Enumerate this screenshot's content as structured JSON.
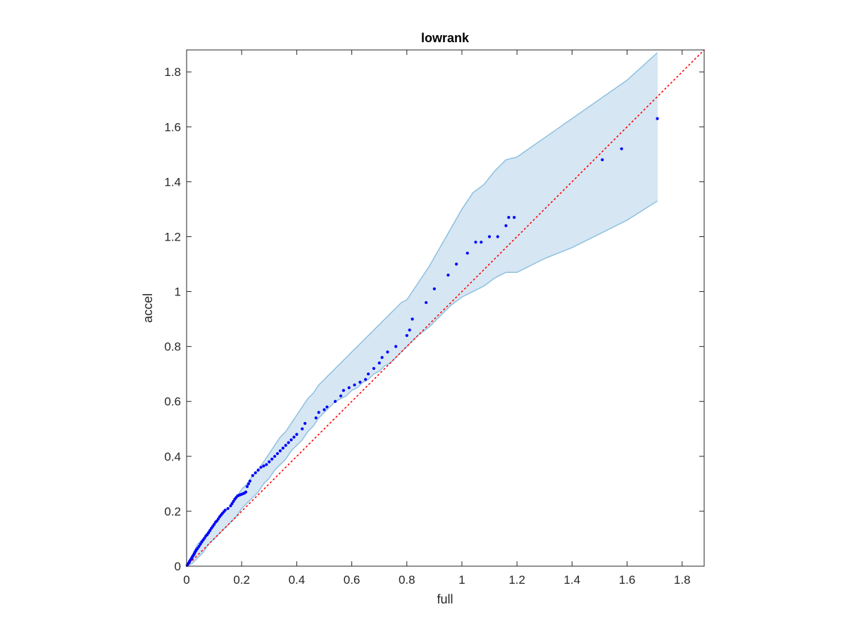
{
  "chart_data": {
    "type": "scatter",
    "title": "lowrank",
    "xlabel": "full",
    "ylabel": "accel",
    "xlim": [
      0,
      1.88
    ],
    "ylim": [
      0,
      1.88
    ],
    "xticks": [
      0,
      0.2,
      0.4,
      0.6,
      0.8,
      1,
      1.2,
      1.4,
      1.6,
      1.8
    ],
    "yticks": [
      0,
      0.2,
      0.4,
      0.6,
      0.8,
      1,
      1.2,
      1.4,
      1.6,
      1.8
    ],
    "xtick_labels": [
      "0",
      "0.2",
      "0.4",
      "0.6",
      "0.8",
      "1",
      "1.2",
      "1.4",
      "1.6",
      "1.8"
    ],
    "ytick_labels": [
      "0",
      "0.2",
      "0.4",
      "0.6",
      "0.8",
      "1",
      "1.2",
      "1.4",
      "1.6",
      "1.8"
    ],
    "grid": false,
    "colors": {
      "points": "#0000ff",
      "band_fill": "#d6e6f3",
      "band_edge": "#8ec1e0",
      "reference_line": "#ff0000",
      "axes": "#262626"
    },
    "reference_line": {
      "style": "dotted",
      "from": [
        0,
        0
      ],
      "to": [
        1.88,
        1.88
      ]
    },
    "confidence_band": {
      "upper": [
        [
          0,
          0
        ],
        [
          0.01,
          0.02
        ],
        [
          0.02,
          0.04
        ],
        [
          0.03,
          0.06
        ],
        [
          0.04,
          0.08
        ],
        [
          0.06,
          0.1
        ],
        [
          0.08,
          0.13
        ],
        [
          0.1,
          0.15
        ],
        [
          0.12,
          0.18
        ],
        [
          0.14,
          0.2
        ],
        [
          0.16,
          0.22
        ],
        [
          0.18,
          0.25
        ],
        [
          0.2,
          0.28
        ],
        [
          0.22,
          0.3
        ],
        [
          0.24,
          0.33
        ],
        [
          0.26,
          0.35
        ],
        [
          0.28,
          0.38
        ],
        [
          0.3,
          0.41
        ],
        [
          0.32,
          0.44
        ],
        [
          0.34,
          0.47
        ],
        [
          0.36,
          0.49
        ],
        [
          0.38,
          0.52
        ],
        [
          0.4,
          0.55
        ],
        [
          0.42,
          0.58
        ],
        [
          0.44,
          0.61
        ],
        [
          0.46,
          0.63
        ],
        [
          0.48,
          0.66
        ],
        [
          0.5,
          0.68
        ],
        [
          0.52,
          0.7
        ],
        [
          0.54,
          0.72
        ],
        [
          0.56,
          0.74
        ],
        [
          0.58,
          0.76
        ],
        [
          0.6,
          0.78
        ],
        [
          0.62,
          0.8
        ],
        [
          0.64,
          0.82
        ],
        [
          0.66,
          0.84
        ],
        [
          0.68,
          0.86
        ],
        [
          0.7,
          0.88
        ],
        [
          0.72,
          0.9
        ],
        [
          0.74,
          0.92
        ],
        [
          0.76,
          0.94
        ],
        [
          0.78,
          0.96
        ],
        [
          0.8,
          0.97
        ],
        [
          0.84,
          1.03
        ],
        [
          0.88,
          1.09
        ],
        [
          0.92,
          1.16
        ],
        [
          0.96,
          1.23
        ],
        [
          1.0,
          1.3
        ],
        [
          1.04,
          1.36
        ],
        [
          1.08,
          1.39
        ],
        [
          1.12,
          1.44
        ],
        [
          1.16,
          1.48
        ],
        [
          1.2,
          1.49
        ],
        [
          1.3,
          1.56
        ],
        [
          1.4,
          1.63
        ],
        [
          1.5,
          1.7
        ],
        [
          1.6,
          1.77
        ],
        [
          1.71,
          1.87
        ]
      ],
      "lower": [
        [
          0,
          0
        ],
        [
          0.02,
          0.01
        ],
        [
          0.04,
          0.03
        ],
        [
          0.06,
          0.05
        ],
        [
          0.08,
          0.08
        ],
        [
          0.1,
          0.1
        ],
        [
          0.12,
          0.12
        ],
        [
          0.14,
          0.14
        ],
        [
          0.16,
          0.16
        ],
        [
          0.18,
          0.18
        ],
        [
          0.2,
          0.21
        ],
        [
          0.22,
          0.23
        ],
        [
          0.24,
          0.25
        ],
        [
          0.26,
          0.27
        ],
        [
          0.28,
          0.3
        ],
        [
          0.3,
          0.32
        ],
        [
          0.32,
          0.35
        ],
        [
          0.34,
          0.37
        ],
        [
          0.36,
          0.39
        ],
        [
          0.38,
          0.42
        ],
        [
          0.4,
          0.44
        ],
        [
          0.42,
          0.46
        ],
        [
          0.44,
          0.49
        ],
        [
          0.46,
          0.51
        ],
        [
          0.48,
          0.54
        ],
        [
          0.5,
          0.56
        ],
        [
          0.52,
          0.58
        ],
        [
          0.54,
          0.6
        ],
        [
          0.56,
          0.61
        ],
        [
          0.58,
          0.62
        ],
        [
          0.6,
          0.64
        ],
        [
          0.62,
          0.65
        ],
        [
          0.64,
          0.67
        ],
        [
          0.66,
          0.68
        ],
        [
          0.68,
          0.7
        ],
        [
          0.7,
          0.71
        ],
        [
          0.72,
          0.73
        ],
        [
          0.74,
          0.74
        ],
        [
          0.76,
          0.76
        ],
        [
          0.8,
          0.8
        ],
        [
          0.84,
          0.84
        ],
        [
          0.88,
          0.87
        ],
        [
          0.92,
          0.91
        ],
        [
          0.96,
          0.95
        ],
        [
          1.0,
          0.98
        ],
        [
          1.04,
          1.0
        ],
        [
          1.08,
          1.02
        ],
        [
          1.12,
          1.05
        ],
        [
          1.16,
          1.07
        ],
        [
          1.2,
          1.07
        ],
        [
          1.3,
          1.12
        ],
        [
          1.4,
          1.16
        ],
        [
          1.5,
          1.21
        ],
        [
          1.6,
          1.26
        ],
        [
          1.71,
          1.33
        ]
      ]
    },
    "series": [
      {
        "x": [
          0.002,
          0.005,
          0.008,
          0.01,
          0.012,
          0.015,
          0.018,
          0.02,
          0.022,
          0.025,
          0.028,
          0.03,
          0.033,
          0.036,
          0.04,
          0.045,
          0.05,
          0.055,
          0.06,
          0.065,
          0.07,
          0.075,
          0.08,
          0.085,
          0.09,
          0.095,
          0.1,
          0.105,
          0.11,
          0.115,
          0.12,
          0.125,
          0.13,
          0.135,
          0.14,
          0.15,
          0.16,
          0.165,
          0.17,
          0.175,
          0.18,
          0.185,
          0.19,
          0.195,
          0.2,
          0.205,
          0.21,
          0.215,
          0.22,
          0.225,
          0.23,
          0.24,
          0.25,
          0.26,
          0.27,
          0.28,
          0.29,
          0.3,
          0.31,
          0.32,
          0.33,
          0.34,
          0.35,
          0.36,
          0.37,
          0.38,
          0.39,
          0.4,
          0.42,
          0.43,
          0.47,
          0.48,
          0.5,
          0.51,
          0.54,
          0.56,
          0.57,
          0.59,
          0.61,
          0.63,
          0.65,
          0.66,
          0.68,
          0.7,
          0.71,
          0.73,
          0.76,
          0.8,
          0.81,
          0.82,
          0.87,
          0.9,
          0.95,
          0.98,
          1.02,
          1.05,
          1.07,
          1.1,
          1.13,
          1.16,
          1.17,
          1.19,
          1.51,
          1.58,
          1.71
        ],
        "y": [
          0.003,
          0.008,
          0.012,
          0.016,
          0.02,
          0.024,
          0.028,
          0.032,
          0.036,
          0.04,
          0.045,
          0.05,
          0.055,
          0.06,
          0.065,
          0.072,
          0.08,
          0.088,
          0.095,
          0.102,
          0.11,
          0.115,
          0.122,
          0.13,
          0.138,
          0.145,
          0.152,
          0.16,
          0.165,
          0.172,
          0.18,
          0.186,
          0.192,
          0.198,
          0.204,
          0.21,
          0.22,
          0.228,
          0.236,
          0.244,
          0.25,
          0.256,
          0.258,
          0.26,
          0.262,
          0.264,
          0.266,
          0.27,
          0.29,
          0.3,
          0.31,
          0.33,
          0.34,
          0.35,
          0.36,
          0.365,
          0.37,
          0.38,
          0.39,
          0.4,
          0.41,
          0.42,
          0.43,
          0.44,
          0.45,
          0.46,
          0.47,
          0.48,
          0.5,
          0.52,
          0.54,
          0.56,
          0.57,
          0.58,
          0.6,
          0.62,
          0.64,
          0.65,
          0.66,
          0.67,
          0.68,
          0.7,
          0.72,
          0.74,
          0.76,
          0.78,
          0.8,
          0.84,
          0.86,
          0.9,
          0.96,
          1.01,
          1.06,
          1.1,
          1.14,
          1.18,
          1.18,
          1.2,
          1.2,
          1.24,
          1.27,
          1.27,
          1.48,
          1.52,
          1.63
        ]
      }
    ]
  }
}
